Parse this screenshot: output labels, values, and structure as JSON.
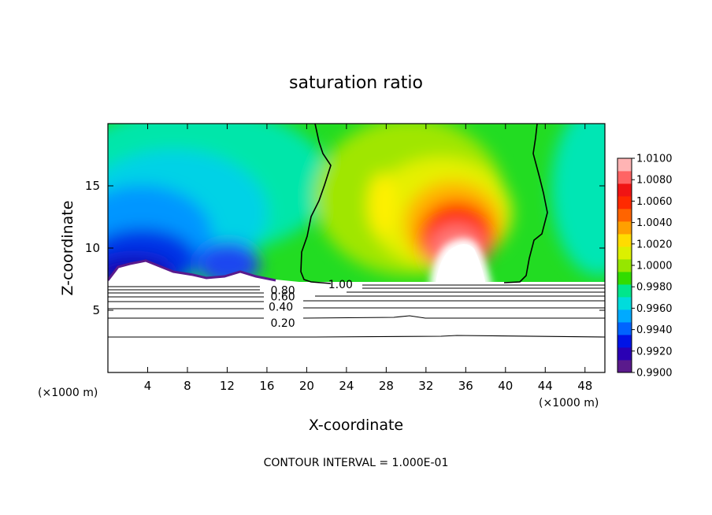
{
  "chart_data": {
    "type": "heatmap",
    "title": "saturation ratio",
    "xlabel": "X-coordinate",
    "ylabel": "Z-coordinate",
    "x_unit": "(×1000 m)",
    "x_unit_right": "(×1000 m)",
    "xlim": [
      0,
      50
    ],
    "ylim": [
      0,
      20
    ],
    "x_ticks": [
      4,
      8,
      12,
      16,
      20,
      24,
      28,
      32,
      36,
      40,
      44,
      48
    ],
    "y_ticks": [
      5,
      10,
      15
    ],
    "colorbar": {
      "min": 0.99,
      "max": 1.01,
      "labels": [
        "1.0100",
        "1.0080",
        "1.0060",
        "1.0040",
        "1.0020",
        "1.0000",
        "0.9980",
        "0.9960",
        "0.9940",
        "0.9920",
        "0.9900"
      ],
      "colors": [
        "#5a1a8c",
        "#2a00b4",
        "#0014e6",
        "#0064ff",
        "#00aaff",
        "#00dcdc",
        "#00e68c",
        "#32dc00",
        "#96e600",
        "#dcf000",
        "#ffdc00",
        "#ffa000",
        "#ff6400",
        "#ff2a00",
        "#f01414",
        "#ff6464",
        "#ffb4b4"
      ]
    },
    "contour_labels": [
      {
        "text": "1.00",
        "x": 23.4,
        "y": 7.1
      },
      {
        "text": "0.80",
        "x": 17.6,
        "y": 6.6
      },
      {
        "text": "0.60",
        "x": 17.6,
        "y": 6.1
      },
      {
        "text": "0.40",
        "x": 17.4,
        "y": 5.3
      },
      {
        "text": "0.20",
        "x": 17.6,
        "y": 4.0
      }
    ],
    "contour_interval_note": "CONTOUR INTERVAL = 1.000E-01"
  }
}
